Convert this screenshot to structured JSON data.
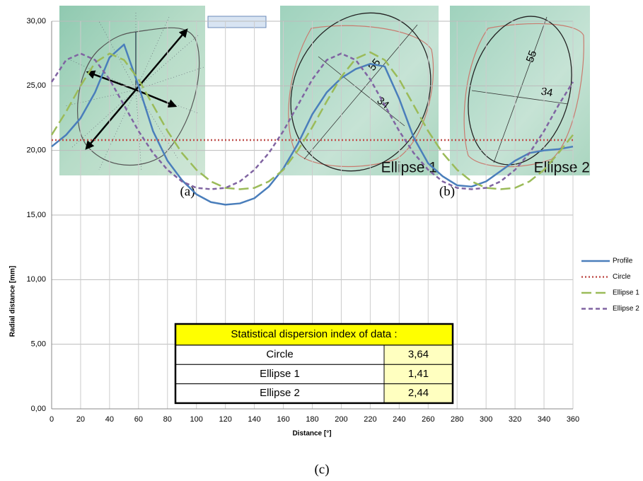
{
  "panels": {
    "ellipse1": {
      "label": "Ellipse 1",
      "major": "55",
      "minor": "34"
    },
    "ellipse2": {
      "label": "Ellipse 2",
      "major": "55",
      "minor": "34"
    },
    "captions": [
      "(a)",
      "(b)",
      "(c)"
    ]
  },
  "chart_data": {
    "type": "line",
    "xlabel": "Distance [°]",
    "ylabel": "Radial distance [mm]",
    "x": [
      0,
      10,
      20,
      30,
      40,
      50,
      60,
      70,
      80,
      90,
      100,
      110,
      120,
      130,
      140,
      150,
      160,
      170,
      180,
      190,
      200,
      210,
      220,
      230,
      240,
      250,
      260,
      270,
      280,
      290,
      300,
      310,
      320,
      330,
      340,
      350,
      360
    ],
    "series": [
      {
        "name": "Profile",
        "color": "#4a7ebb",
        "dash": "",
        "values": [
          20.3,
          21.2,
          22.5,
          24.5,
          27.2,
          28.2,
          25,
          21.5,
          19.2,
          17.7,
          16.6,
          16,
          15.8,
          15.9,
          16.3,
          17.2,
          18.6,
          20.5,
          22.8,
          24.5,
          25.6,
          26.3,
          26.7,
          26.5,
          24,
          21,
          19,
          18,
          17.3,
          17.2,
          17.6,
          18.4,
          19.2,
          19.8,
          20,
          20.1,
          20.3
        ]
      },
      {
        "name": "Circle",
        "color": "#c0504d",
        "dash": "2 3",
        "values": [
          20.8,
          20.8,
          20.8,
          20.8,
          20.8,
          20.8,
          20.8,
          20.8,
          20.8,
          20.8,
          20.8,
          20.8,
          20.8,
          20.8,
          20.8,
          20.8,
          20.8,
          20.8,
          20.8,
          20.8,
          20.8,
          20.8,
          20.8,
          20.8,
          20.8,
          20.8,
          20.8,
          20.8,
          20.8,
          20.8,
          20.8,
          20.8,
          20.8,
          20.8,
          20.8,
          20.8,
          20.8
        ]
      },
      {
        "name": "Ellipse 1",
        "color": "#9bbb59",
        "dash": "14 6",
        "values": [
          21.2,
          23,
          25,
          26.8,
          27.5,
          27,
          25.5,
          23.5,
          21.5,
          19.8,
          18.5,
          17.6,
          17.1,
          17,
          17.1,
          17.6,
          18.5,
          20,
          21.8,
          23.8,
          25.7,
          27.1,
          27.6,
          27,
          25.5,
          23.5,
          21.5,
          19.8,
          18.5,
          17.6,
          17.1,
          17,
          17.1,
          17.6,
          18.5,
          19.8,
          21.2
        ]
      },
      {
        "name": "Ellipse 2",
        "color": "#8064a2",
        "dash": "6 4",
        "values": [
          25.3,
          27,
          27.5,
          27,
          25.5,
          23.5,
          21.5,
          19.8,
          18.5,
          17.6,
          17.1,
          17,
          17.1,
          17.6,
          18.5,
          19.8,
          21.5,
          23.5,
          25.5,
          27,
          27.5,
          27,
          25.5,
          23.5,
          21.5,
          19.8,
          18.5,
          17.6,
          17.1,
          17,
          17.1,
          17.6,
          18.5,
          19.8,
          21.5,
          23.5,
          25.3
        ]
      }
    ],
    "xlim": [
      0,
      360
    ],
    "ylim": [
      0,
      30
    ],
    "xticks": [
      0,
      20,
      40,
      60,
      80,
      100,
      120,
      140,
      160,
      180,
      200,
      220,
      240,
      260,
      280,
      300,
      320,
      340,
      360
    ],
    "yticks": [
      {
        "value": 0,
        "label": "0,00"
      },
      {
        "value": 5,
        "label": "5,00"
      },
      {
        "value": 10,
        "label": "10,00"
      },
      {
        "value": 15,
        "label": "15,00"
      },
      {
        "value": 20,
        "label": "20,00"
      },
      {
        "value": 25,
        "label": "25,00"
      },
      {
        "value": 30,
        "label": "30,00"
      }
    ],
    "grid": true,
    "legend": "right",
    "table": {
      "title": "Statistical dispersion index of data :",
      "rows": [
        [
          "Circle",
          "3,64"
        ],
        [
          "Ellipse 1",
          "1,41"
        ],
        [
          "Ellipse 2",
          "2,44"
        ]
      ]
    }
  }
}
